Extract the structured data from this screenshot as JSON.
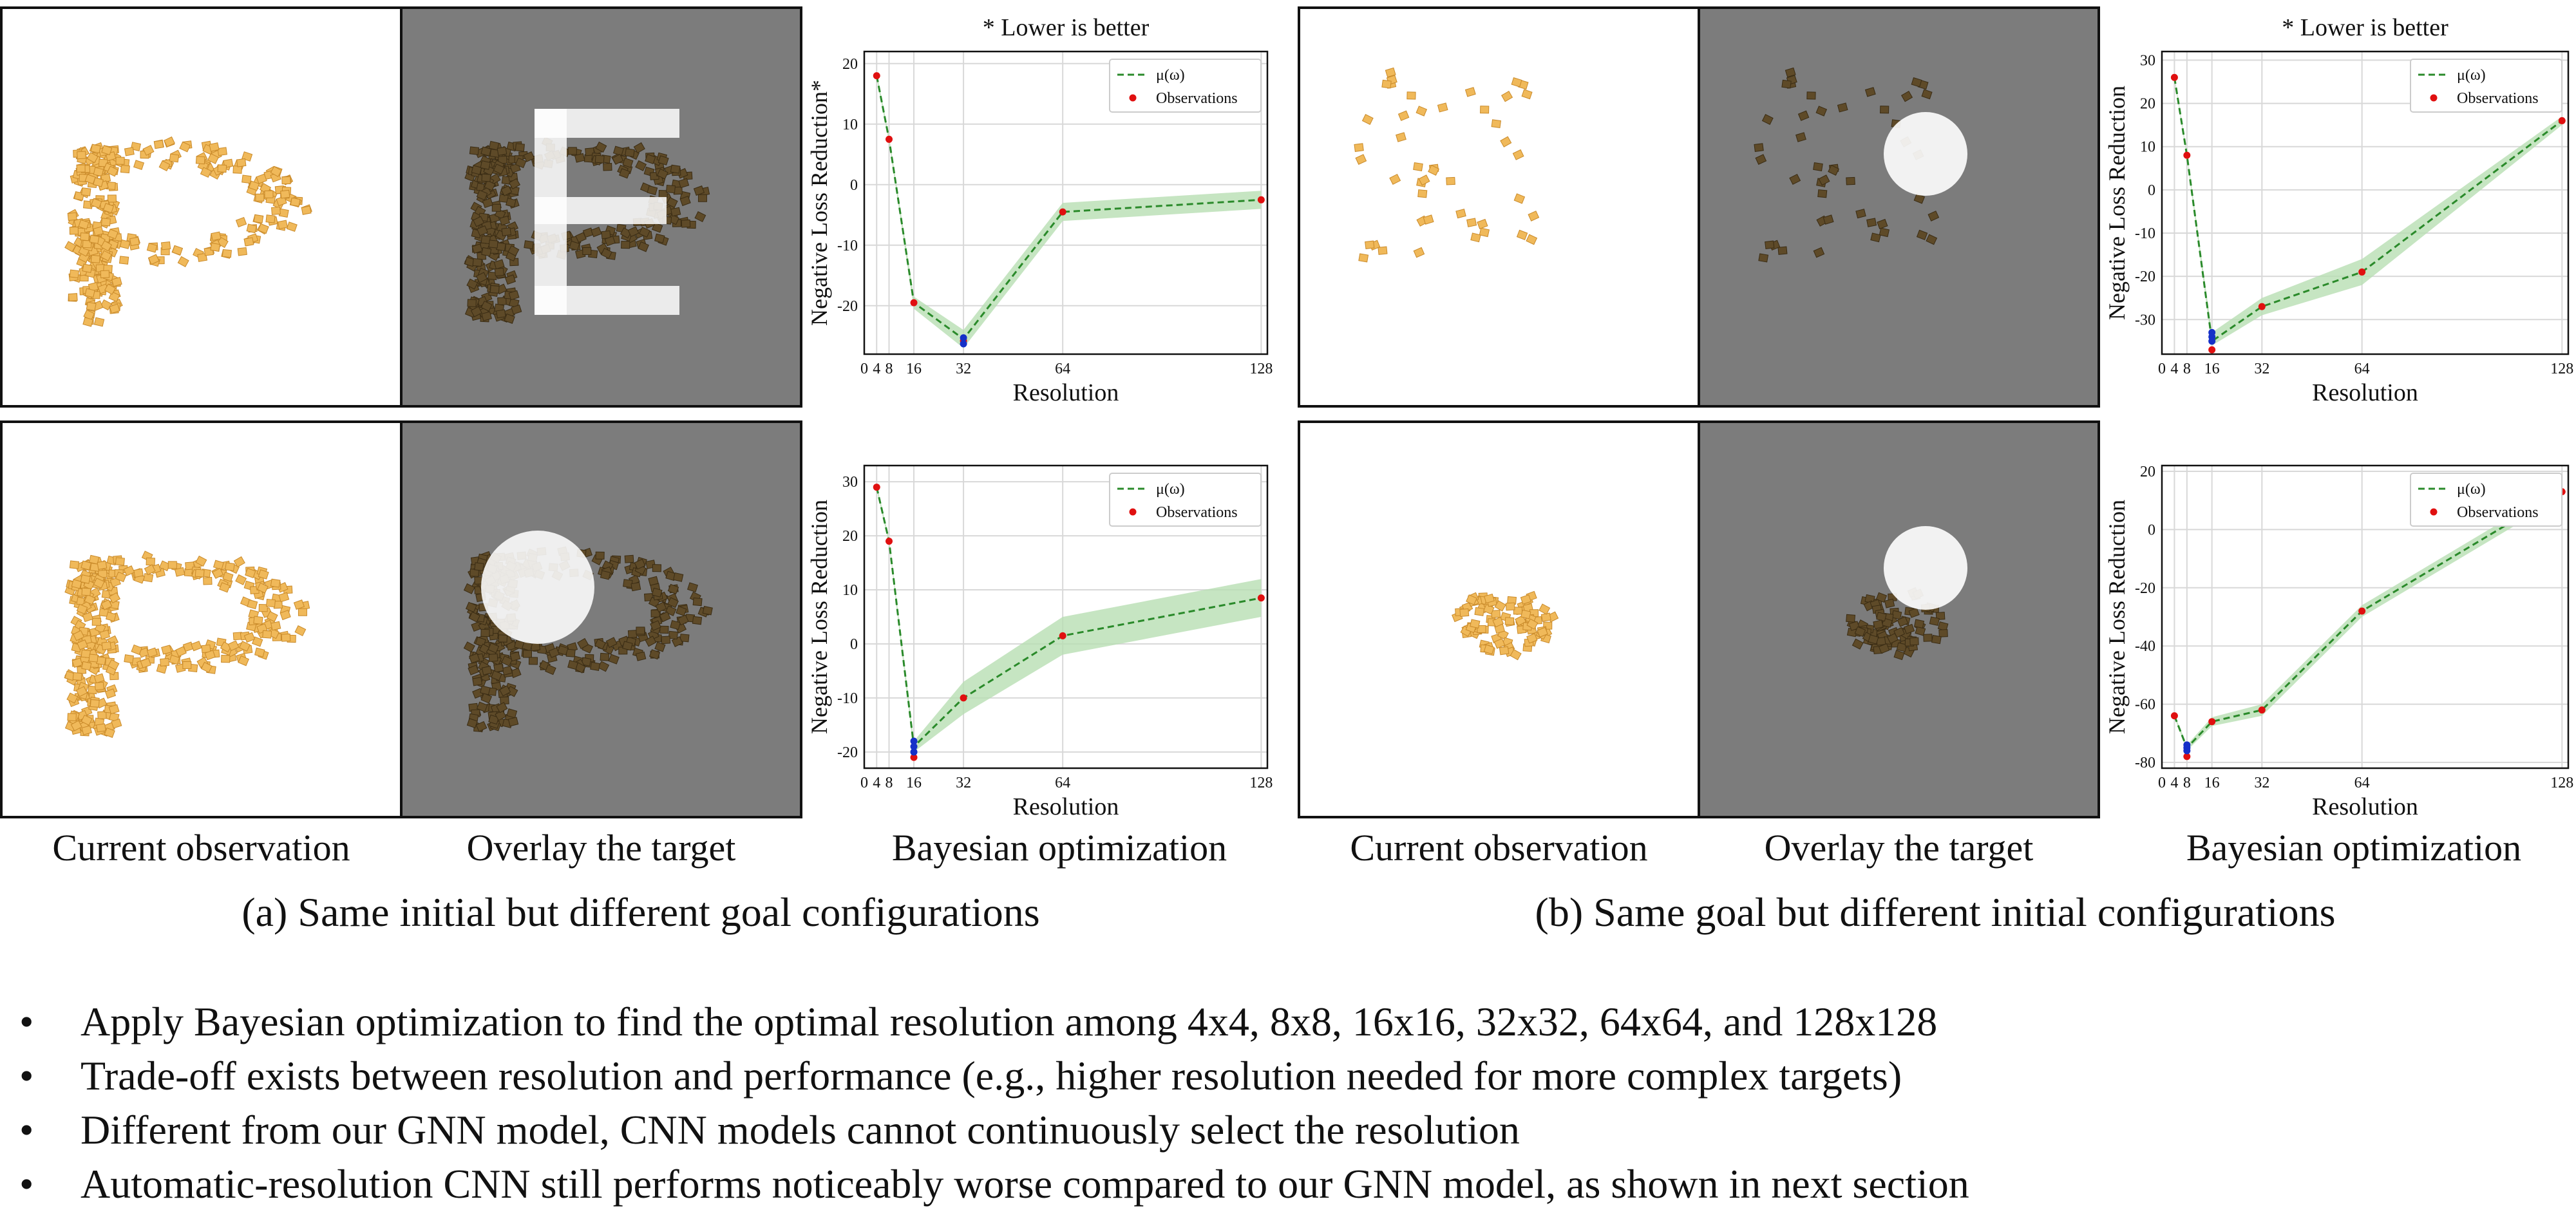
{
  "section_a": {
    "caption": "(a) Same initial but different goal configurations",
    "col_obs": "Current observation",
    "col_overlay": "Overlay the target",
    "col_bo": "Bayesian optimization",
    "overlay_top_letter": "E",
    "overlay_top_shape": "letter-E-target",
    "overlay_bottom_shape": "circle-target"
  },
  "section_b": {
    "caption": "(b) Same goal but different initial configurations",
    "col_obs": "Current observation",
    "col_overlay": "Overlay the target",
    "col_bo": "Bayesian optimization",
    "overlay_shape": "circle-target"
  },
  "bullets": [
    "Apply Bayesian optimization to find the optimal resolution among 4x4, 8x8, 16x16, 32x32, 64x64, and 128x128",
    "Trade-off exists between resolution and performance (e.g., higher resolution needed for more complex targets)",
    "Different from our GNN model, CNN models cannot continuously select the resolution",
    "Automatic-resolution CNN still performs noticeably worse compared to our GNN model, as shown in next section"
  ],
  "bullet_glyph": "•",
  "colors": {
    "granule": "#f0b95a",
    "overlay_gray": "#7c7c7c",
    "mean_line": "#2a8a2a",
    "band": "#b8dfb3",
    "observation": "#e01010",
    "best_point": "#1530c8"
  },
  "chart_data": [
    {
      "type": "line",
      "id": "a-top",
      "title": "* Lower is better",
      "xlabel": "Resolution",
      "ylabel": "Negative Loss Reduction*",
      "xticks": [
        0,
        4,
        8,
        16,
        32,
        64,
        128
      ],
      "yticks": [
        20,
        10,
        0,
        -10,
        -20
      ],
      "xlim": [
        0,
        130
      ],
      "ylim": [
        -28,
        22
      ],
      "legend": [
        "μ(ω)",
        "Observations"
      ],
      "legend_position": "top-right",
      "grid": true,
      "mean": {
        "x": [
          4,
          8,
          16,
          32,
          64,
          128
        ],
        "y": [
          18,
          7.5,
          -19.5,
          -25.5,
          -4.5,
          -2.5
        ]
      },
      "band": {
        "lower": [
          17.5,
          7,
          -20.5,
          -27,
          -6,
          -4
        ],
        "upper": [
          18.5,
          8,
          -18.5,
          -24,
          -3,
          -1
        ]
      },
      "observations": {
        "x": [
          4,
          8,
          16,
          32,
          64,
          128
        ],
        "y": [
          18,
          7.5,
          -19.5,
          -25.8,
          -4.5,
          -2.5
        ]
      },
      "best": {
        "x": [
          32,
          32
        ],
        "y": [
          -25.3,
          -26.3
        ]
      }
    },
    {
      "type": "line",
      "id": "b-top",
      "title": "* Lower is better",
      "xlabel": "Resolution",
      "ylabel": "Negative Loss Reduction",
      "xticks": [
        0,
        4,
        8,
        16,
        32,
        64,
        128
      ],
      "yticks": [
        30,
        20,
        10,
        0,
        -10,
        -20,
        -30
      ],
      "xlim": [
        0,
        130
      ],
      "ylim": [
        -38,
        32
      ],
      "legend": [
        "μ(ω)",
        "Observations"
      ],
      "legend_position": "top-right",
      "grid": true,
      "mean": {
        "x": [
          4,
          8,
          16,
          32,
          64,
          128
        ],
        "y": [
          26,
          8,
          -35,
          -27,
          -19,
          16
        ]
      },
      "band": {
        "lower": [
          25.5,
          7.5,
          -36,
          -29,
          -22,
          15
        ],
        "upper": [
          26.5,
          8.5,
          -33,
          -25,
          -16,
          17
        ]
      },
      "observations": {
        "x": [
          4,
          8,
          16,
          32,
          64,
          128
        ],
        "y": [
          26,
          8,
          -37,
          -27,
          -19,
          16
        ]
      },
      "best": {
        "x": [
          16,
          16,
          16
        ],
        "y": [
          -33,
          -34,
          -35
        ]
      }
    },
    {
      "type": "line",
      "id": "a-bottom",
      "title": "",
      "xlabel": "Resolution",
      "ylabel": "Negative Loss Reduction",
      "xticks": [
        0,
        4,
        8,
        16,
        32,
        64,
        128
      ],
      "yticks": [
        30,
        20,
        10,
        0,
        -10,
        -20
      ],
      "xlim": [
        0,
        130
      ],
      "ylim": [
        -23,
        33
      ],
      "legend": [
        "μ(ω)",
        "Observations"
      ],
      "legend_position": "top-right",
      "grid": true,
      "mean": {
        "x": [
          4,
          8,
          16,
          32,
          64,
          128
        ],
        "y": [
          29,
          19,
          -19,
          -10,
          1.5,
          8.5
        ]
      },
      "band": {
        "lower": [
          28.5,
          18.5,
          -20,
          -13,
          -2,
          5
        ],
        "upper": [
          29.5,
          19.5,
          -18,
          -7,
          5,
          12
        ]
      },
      "observations": {
        "x": [
          4,
          8,
          16,
          32,
          64,
          128
        ],
        "y": [
          29,
          19,
          -21,
          -10,
          1.5,
          8.5
        ]
      },
      "best": {
        "x": [
          16,
          16,
          16
        ],
        "y": [
          -18,
          -19,
          -20
        ]
      }
    },
    {
      "type": "line",
      "id": "b-bottom",
      "title": "",
      "xlabel": "Resolution",
      "ylabel": "Negative Loss Reduction",
      "xticks": [
        0,
        4,
        8,
        16,
        32,
        64,
        128
      ],
      "yticks": [
        20,
        0,
        -20,
        -40,
        -60,
        -80
      ],
      "xlim": [
        0,
        130
      ],
      "ylim": [
        -82,
        22
      ],
      "legend": [
        "μ(ω)",
        "Observations"
      ],
      "legend_position": "top-right",
      "grid": true,
      "mean": {
        "x": [
          4,
          8,
          16,
          32,
          64,
          128
        ],
        "y": [
          -64,
          -75,
          -66,
          -62,
          -28,
          13
        ]
      },
      "band": {
        "lower": [
          -64.5,
          -76,
          -67.5,
          -64,
          -30,
          11
        ],
        "upper": [
          -63.5,
          -74,
          -64.5,
          -60,
          -26,
          15
        ]
      },
      "observations": {
        "x": [
          4,
          8,
          16,
          32,
          64,
          128
        ],
        "y": [
          -64,
          -78,
          -66,
          -62,
          -28,
          13
        ]
      },
      "best": {
        "x": [
          8,
          8,
          8
        ],
        "y": [
          -74,
          -75,
          -76
        ]
      }
    }
  ]
}
